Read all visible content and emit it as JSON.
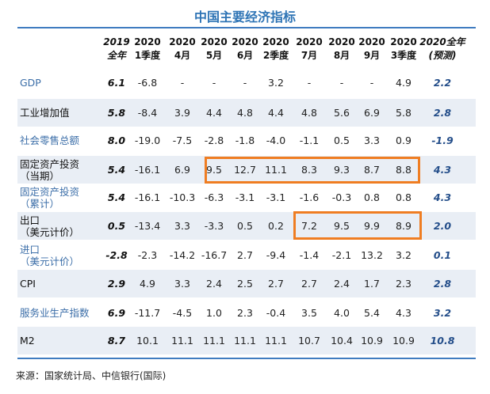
{
  "title": "中国主要经济指标",
  "headers": [
    {
      "line1": "2019",
      "line2": "全年"
    },
    {
      "line1": "2020",
      "line2": "1季度"
    },
    {
      "line1": "2020",
      "line2": "4月"
    },
    {
      "line1": "2020",
      "line2": "5月"
    },
    {
      "line1": "2020",
      "line2": "6月"
    },
    {
      "line1": "2020",
      "line2": "2季度"
    },
    {
      "line1": "2020",
      "line2": "7月"
    },
    {
      "line1": "2020",
      "line2": "8月"
    },
    {
      "line1": "2020",
      "line2": "9月"
    },
    {
      "line1": "2020",
      "line2": "3季度"
    },
    {
      "line1": "2020全年",
      "line2": "(预测)"
    }
  ],
  "rows": [
    {
      "label": [
        "GDP"
      ],
      "values": [
        "6.1",
        "-6.8",
        "-",
        "-",
        "-",
        "3.2",
        "-",
        "-",
        "-",
        "4.9",
        "2.2"
      ]
    },
    {
      "label": [
        "工业增加值"
      ],
      "values": [
        "5.8",
        "-8.4",
        "3.9",
        "4.4",
        "4.8",
        "4.4",
        "4.8",
        "5.6",
        "6.9",
        "5.8",
        "2.8"
      ]
    },
    {
      "label": [
        "社会零售总额"
      ],
      "values": [
        "8.0",
        "-19.0",
        "-7.5",
        "-2.8",
        "-1.8",
        "-4.0",
        "-1.1",
        "0.5",
        "3.3",
        "0.9",
        "-1.9"
      ]
    },
    {
      "label": [
        "固定资产投资",
        "（当期）"
      ],
      "values": [
        "5.4",
        "-16.1",
        "6.9",
        "9.5",
        "12.7",
        "11.1",
        "8.3",
        "9.3",
        "8.7",
        "8.8",
        "4.3"
      ]
    },
    {
      "label": [
        "固定资产投资",
        "（累计）"
      ],
      "values": [
        "5.4",
        "-16.1",
        "-10.3",
        "-6.3",
        "-3.1",
        "-3.1",
        "-1.6",
        "-0.3",
        "0.8",
        "0.8",
        "4.3"
      ]
    },
    {
      "label": [
        "出口",
        "（美元计价）"
      ],
      "values": [
        "0.5",
        "-13.4",
        "3.3",
        "-3.3",
        "0.5",
        "0.2",
        "7.2",
        "9.5",
        "9.9",
        "8.9",
        "2.0"
      ]
    },
    {
      "label": [
        "进口",
        "（美元计价）"
      ],
      "values": [
        "-2.8",
        "-2.3",
        "-14.2",
        "-16.7",
        "2.7",
        "-9.4",
        "-1.4",
        "-2.1",
        "13.2",
        "3.2",
        "0.1"
      ]
    },
    {
      "label": [
        "CPI"
      ],
      "values": [
        "2.9",
        "4.9",
        "3.3",
        "2.4",
        "2.5",
        "2.7",
        "2.7",
        "2.4",
        "1.7",
        "2.3",
        "2.8"
      ]
    },
    {
      "label": [
        "服务业生产指数"
      ],
      "values": [
        "6.9",
        "-11.7",
        "-4.5",
        "1.0",
        "2.3",
        "-0.4",
        "3.5",
        "4.0",
        "5.4",
        "4.3",
        "3.2"
      ]
    },
    {
      "label": [
        "M2"
      ],
      "values": [
        "8.7",
        "10.1",
        "11.1",
        "11.1",
        "11.1",
        "11.1",
        "10.7",
        "10.4",
        "10.9",
        "10.9",
        "10.8"
      ]
    }
  ],
  "source": "来源：国家统计局、中信银行(国际)",
  "colors": {
    "title": "#2e74b5",
    "highlight_box": "#ef7d22",
    "row_shade": "#e9eef5",
    "rule": "#3f7cc0"
  }
}
